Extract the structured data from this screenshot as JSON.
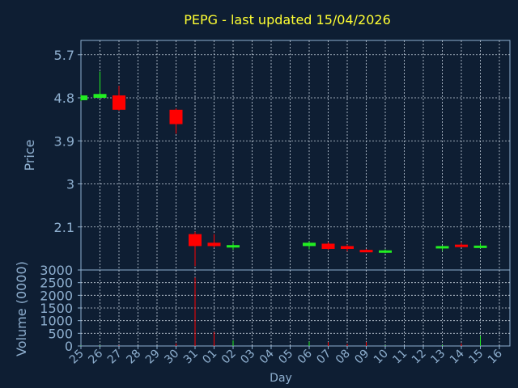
{
  "chart_data": {
    "type": "candlestick",
    "title": "PEPG - last updated 15/04/2026",
    "xlabel": "Day",
    "price_ylabel": "Price",
    "volume_ylabel": "Volume (0000)",
    "x_ticks": [
      "25",
      "26",
      "27",
      "28",
      "29",
      "30",
      "31",
      "01",
      "02",
      "03",
      "04",
      "05",
      "06",
      "07",
      "08",
      "09",
      "10",
      "11",
      "12",
      "13",
      "14",
      "15",
      "16"
    ],
    "price_ylim": [
      1.2,
      6.0
    ],
    "price_ticks": [
      "5.7",
      "4.8",
      "3.9",
      "3",
      "2.1"
    ],
    "price_tick_values": [
      5.7,
      4.8,
      3.9,
      3.0,
      2.1
    ],
    "volume_ylim": [
      0,
      3000
    ],
    "volume_ticks": [
      "3000",
      "2500",
      "2000",
      "1500",
      "1000",
      "500",
      "0"
    ],
    "volume_tick_values": [
      3000,
      2500,
      2000,
      1500,
      1000,
      500,
      0
    ],
    "grid": true,
    "up_color": "#22ee22",
    "down_color": "#ff0000",
    "candles": [
      {
        "day": "25",
        "open": 4.75,
        "close": 4.85,
        "high": 4.87,
        "low": 4.73,
        "volume": 15
      },
      {
        "day": "26",
        "open": 4.8,
        "close": 4.88,
        "high": 5.35,
        "low": 4.78,
        "volume": 20
      },
      {
        "day": "27",
        "open": 4.85,
        "close": 4.55,
        "high": 5.05,
        "low": 4.53,
        "volume": 15
      },
      {
        "day": "30",
        "open": 4.55,
        "close": 4.25,
        "high": 4.58,
        "low": 4.05,
        "volume": 100
      },
      {
        "day": "31",
        "open": 1.95,
        "close": 1.7,
        "high": 2.0,
        "low": 1.28,
        "volume": 2700
      },
      {
        "day": "01",
        "open": 1.77,
        "close": 1.7,
        "high": 1.95,
        "low": 1.67,
        "volume": 550
      },
      {
        "day": "02",
        "open": 1.7,
        "close": 1.72,
        "high": 1.77,
        "low": 1.62,
        "volume": 220
      },
      {
        "day": "06",
        "open": 1.7,
        "close": 1.77,
        "high": 1.8,
        "low": 1.63,
        "volume": 170
      },
      {
        "day": "07",
        "open": 1.75,
        "close": 1.64,
        "high": 1.78,
        "low": 1.62,
        "volume": 150
      },
      {
        "day": "08",
        "open": 1.7,
        "close": 1.64,
        "high": 1.73,
        "low": 1.59,
        "volume": 80
      },
      {
        "day": "09",
        "open": 1.62,
        "close": 1.59,
        "high": 1.64,
        "low": 1.57,
        "volume": 150
      },
      {
        "day": "10",
        "open": 1.6,
        "close": 1.61,
        "high": 1.63,
        "low": 1.55,
        "volume": 20
      },
      {
        "day": "13",
        "open": 1.66,
        "close": 1.7,
        "high": 1.71,
        "low": 1.6,
        "volume": 40
      },
      {
        "day": "14",
        "open": 1.73,
        "close": 1.7,
        "high": 1.77,
        "low": 1.68,
        "volume": 100
      },
      {
        "day": "15",
        "open": 1.69,
        "close": 1.71,
        "high": 1.76,
        "low": 1.65,
        "volume": 400
      }
    ]
  }
}
